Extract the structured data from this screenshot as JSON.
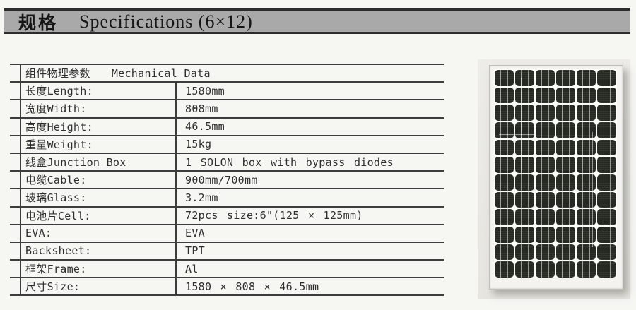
{
  "header": {
    "title_zh": "规格",
    "title_en": "Specifications (6×12)"
  },
  "spec_table": {
    "section_header": {
      "zh": "组件物理参数",
      "en": "Mechanical Data"
    },
    "rows": [
      {
        "label": "长度Length:",
        "value": "1580mm"
      },
      {
        "label": "宽度Width:",
        "value": "808mm"
      },
      {
        "label": "高度Height:",
        "value": "46.5mm"
      },
      {
        "label": "重量Weight:",
        "value": "15kg"
      },
      {
        "label": "线盒Junction Box",
        "value": "1 SOLON box with bypass diodes"
      },
      {
        "label": "电缆Cable:",
        "value": "900mm/700mm"
      },
      {
        "label": "玻璃Glass:",
        "value": "3.2mm"
      },
      {
        "label": "电池片Cell:",
        "value": "72pcs size:6\"(125 × 125mm)"
      },
      {
        "label": "EVA:",
        "value": "EVA"
      },
      {
        "label": "Backsheet:",
        "value": "TPT"
      },
      {
        "label": "框架Frame:",
        "value": "Al"
      },
      {
        "label": "尺寸Size:",
        "value": "1580 × 808 × 46.5mm"
      }
    ]
  },
  "panel_image": {
    "description": "monocrystalline solar module photo, 6 columns × 12 rows of dark cells",
    "grid": {
      "columns": 6,
      "rows": 12
    }
  },
  "colors": {
    "title_bar": "#a9a9a9",
    "title_bar_border": "#2c2c2c",
    "table_line": "#3d3d3d",
    "table_text": "#2e2e2e",
    "page_background": "#f6f6f3",
    "panel_cell": "#262922",
    "panel_frame": "#f4f3ef"
  }
}
